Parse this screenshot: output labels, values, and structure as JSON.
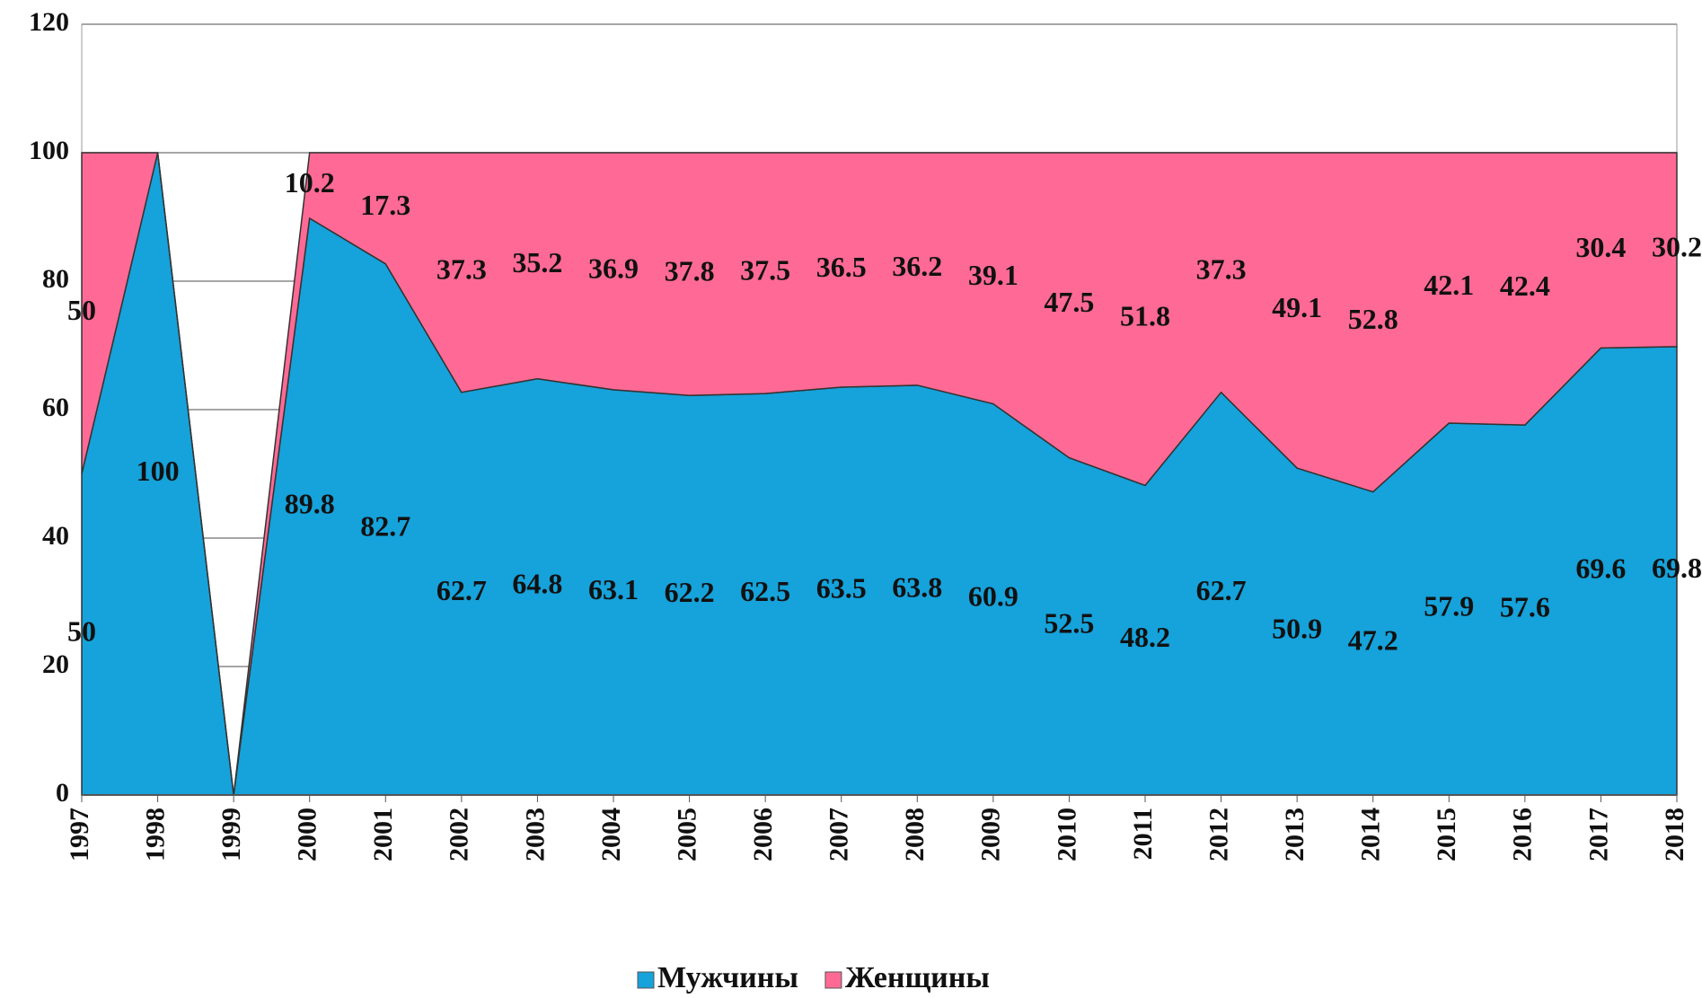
{
  "chart_data": {
    "type": "stacked-area",
    "categories": [
      "1997",
      "1998",
      "1999",
      "2000",
      "2001",
      "2002",
      "2003",
      "2004",
      "2005",
      "2006",
      "2007",
      "2008",
      "2009",
      "2010",
      "2011",
      "2012",
      "2013",
      "2014",
      "2015",
      "2016",
      "2017",
      "2018"
    ],
    "series": [
      {
        "name": "Мужчины",
        "color": "#16a2da",
        "values": [
          50,
          100,
          0,
          89.8,
          82.7,
          62.7,
          64.8,
          63.1,
          62.2,
          62.5,
          63.5,
          63.8,
          60.9,
          52.5,
          48.2,
          62.7,
          50.9,
          47.2,
          57.9,
          57.6,
          69.6,
          69.8
        ]
      },
      {
        "name": "Женщины",
        "color": "#fe6a95",
        "values": [
          50,
          0,
          0,
          10.2,
          17.3,
          37.3,
          35.2,
          36.9,
          37.8,
          37.5,
          36.5,
          36.2,
          39.1,
          47.5,
          51.8,
          37.3,
          49.1,
          52.8,
          42.1,
          42.4,
          30.4,
          30.2
        ]
      }
    ],
    "ylim": [
      0,
      120
    ],
    "yticks": [
      0,
      20,
      40,
      60,
      80,
      100,
      120
    ],
    "grid": true,
    "legend": "bottom"
  }
}
